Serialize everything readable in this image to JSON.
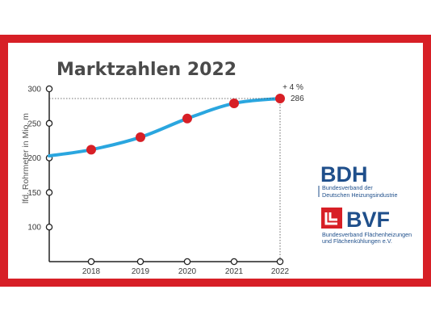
{
  "chart_data": {
    "type": "line",
    "title": "Marktzahlen 2022",
    "ylabel": "lfd. Rohrmeter in Mio. m",
    "xlabel": "",
    "categories": [
      "2018",
      "2019",
      "2020",
      "2021",
      "2022"
    ],
    "ylim": [
      50,
      300
    ],
    "yticks": [
      100,
      150,
      200,
      250,
      300
    ],
    "series": [
      {
        "values": [
          212,
          230,
          257,
          279,
          286
        ]
      }
    ],
    "start_value": 203,
    "annotations": {
      "change": "+ 4 %",
      "last_value": "286"
    },
    "colors": {
      "line": "#2aa6df",
      "points": "#d71f26",
      "frame": "#d71f26"
    }
  },
  "logos": {
    "bdh": {
      "name": "BDH",
      "line1": "Bundesverband der",
      "line2": "Deutschen Heizungsindustrie"
    },
    "bvf": {
      "name": "BVF",
      "line1": "Bundesverband Flächenheizungen",
      "line2": "und Flächenkühlungen e.V."
    }
  }
}
